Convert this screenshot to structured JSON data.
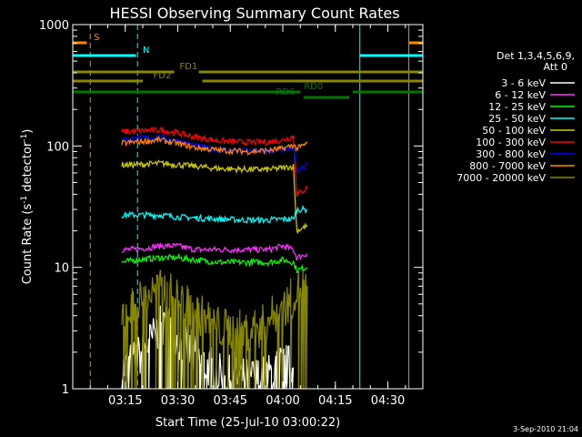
{
  "chart_data": {
    "type": "line",
    "title": "HESSI Observing Summary Count Rates",
    "xlabel": "Start Time (25-Jul-10 03:00:22)",
    "ylabel_parts": [
      "Count Rate (s",
      "-1",
      " detector",
      "-1",
      ")"
    ],
    "xlim_minutes": [
      0,
      100
    ],
    "ylim": [
      1,
      1000
    ],
    "yscale": "log",
    "x_ticks": [
      {
        "m": 15,
        "label": "03:15"
      },
      {
        "m": 30,
        "label": "03:30"
      },
      {
        "m": 45,
        "label": "03:45"
      },
      {
        "m": 60,
        "label": "04:00"
      },
      {
        "m": 75,
        "label": "04:15"
      },
      {
        "m": 90,
        "label": "04:30"
      }
    ],
    "y_tick_labels": [
      {
        "v": 1,
        "label": "1"
      },
      {
        "v": 10,
        "label": "10"
      },
      {
        "v": 100,
        "label": "100"
      },
      {
        "v": 1000,
        "label": "1000"
      }
    ],
    "legend_title": [
      "Det 1,3,4,5,6,9,",
      "Att 0"
    ],
    "legend_placement": "right",
    "series": [
      {
        "name": "3 - 6 keV",
        "color": "#ffffff",
        "values": [
          [
            14,
            1.4
          ],
          [
            20,
            2.0
          ],
          [
            25,
            3.2
          ],
          [
            30,
            2.6
          ],
          [
            35,
            1.8
          ],
          [
            42,
            1.3
          ],
          [
            50,
            1.2
          ],
          [
            56,
            1.3
          ],
          [
            60,
            1.6
          ],
          [
            63,
            1.5
          ]
        ]
      },
      {
        "name": "6 - 12 keV",
        "color": "#ff33ff",
        "values": [
          [
            14,
            14
          ],
          [
            18,
            14
          ],
          [
            25,
            15
          ],
          [
            30,
            15
          ],
          [
            35,
            14
          ],
          [
            42,
            14
          ],
          [
            50,
            14
          ],
          [
            56,
            14
          ],
          [
            60,
            15
          ],
          [
            63,
            14
          ],
          [
            64,
            12
          ],
          [
            67,
            13
          ]
        ]
      },
      {
        "name": "12 - 25 keV",
        "color": "#00ff00",
        "values": [
          [
            14,
            11
          ],
          [
            18,
            11.5
          ],
          [
            25,
            12
          ],
          [
            30,
            12
          ],
          [
            35,
            11.5
          ],
          [
            42,
            11
          ],
          [
            50,
            11
          ],
          [
            56,
            11
          ],
          [
            60,
            11.5
          ],
          [
            63,
            11
          ],
          [
            64,
            9.5
          ],
          [
            67,
            10
          ]
        ]
      },
      {
        "name": "25 - 50 keV",
        "color": "#00ffff",
        "values": [
          [
            14,
            27
          ],
          [
            18,
            27
          ],
          [
            25,
            27
          ],
          [
            30,
            26
          ],
          [
            35,
            25.5
          ],
          [
            42,
            25
          ],
          [
            50,
            24.5
          ],
          [
            56,
            24.5
          ],
          [
            60,
            25
          ],
          [
            63,
            25
          ],
          [
            64,
            30
          ],
          [
            67,
            30
          ]
        ]
      },
      {
        "name": "50 - 100 keV",
        "color": "#cccc00",
        "values": [
          [
            14,
            70
          ],
          [
            18,
            70
          ],
          [
            25,
            72
          ],
          [
            30,
            70
          ],
          [
            35,
            68
          ],
          [
            42,
            65
          ],
          [
            50,
            64
          ],
          [
            56,
            64
          ],
          [
            60,
            66
          ],
          [
            63,
            68
          ],
          [
            64,
            20
          ],
          [
            67,
            22
          ]
        ]
      },
      {
        "name": "100 - 300 keV",
        "color": "#ff0000",
        "values": [
          [
            14,
            130
          ],
          [
            18,
            133
          ],
          [
            25,
            135
          ],
          [
            30,
            128
          ],
          [
            35,
            118
          ],
          [
            42,
            110
          ],
          [
            50,
            107
          ],
          [
            56,
            108
          ],
          [
            60,
            112
          ],
          [
            63,
            120
          ],
          [
            64,
            40
          ],
          [
            67,
            45
          ]
        ]
      },
      {
        "name": "300 - 800 keV",
        "color": "#0000ff",
        "values": [
          [
            14,
            112
          ],
          [
            18,
            115
          ],
          [
            25,
            118
          ],
          [
            30,
            110
          ],
          [
            35,
            100
          ],
          [
            42,
            93
          ],
          [
            50,
            90
          ],
          [
            56,
            90
          ],
          [
            60,
            93
          ],
          [
            63,
            100
          ],
          [
            64,
            60
          ],
          [
            67,
            70
          ]
        ]
      },
      {
        "name": "800 - 7000 keV",
        "color": "#ff8800",
        "values": [
          [
            14,
            105
          ],
          [
            18,
            108
          ],
          [
            25,
            112
          ],
          [
            30,
            105
          ],
          [
            35,
            97
          ],
          [
            42,
            92
          ],
          [
            50,
            90
          ],
          [
            56,
            92
          ],
          [
            60,
            95
          ],
          [
            63,
            102
          ],
          [
            64,
            95
          ],
          [
            67,
            105
          ]
        ]
      },
      {
        "name": "7000 - 20000 keV",
        "color": "#888800",
        "values": [
          [
            14,
            4.0
          ],
          [
            18,
            5.0
          ],
          [
            22,
            6.0
          ],
          [
            26,
            6.5
          ],
          [
            30,
            5.5
          ],
          [
            34,
            4.5
          ],
          [
            38,
            3.8
          ],
          [
            42,
            3.2
          ],
          [
            46,
            3.0
          ],
          [
            50,
            3.0
          ],
          [
            54,
            3.3
          ],
          [
            58,
            4.2
          ],
          [
            62,
            5.2
          ],
          [
            63,
            6.0
          ],
          [
            64,
            6.5
          ],
          [
            67,
            7.0
          ]
        ]
      }
    ],
    "flag_bars": [
      {
        "label": "S",
        "color": "#ff8800",
        "y_frac": 0.05,
        "segments": [
          [
            0,
            4
          ]
        ],
        "right_segments": [
          [
            96,
            100
          ]
        ],
        "label_at": 6
      },
      {
        "label": "N",
        "color": "#00ffff",
        "y_frac": 0.085,
        "segments": [
          [
            0,
            18
          ]
        ],
        "right_segments": [
          [
            82,
            100
          ]
        ],
        "label_at": 20
      },
      {
        "label": "FD1",
        "color": "#888800",
        "y_frac": 0.13,
        "segments": [
          [
            0,
            29
          ]
        ],
        "right_segments": [
          [
            36,
            100
          ]
        ],
        "label_at": 30.5
      },
      {
        "label": "FD2",
        "color": "#888800",
        "y_frac": 0.155,
        "segments": [
          [
            0,
            20
          ]
        ],
        "right_segments": [
          [
            37,
            100
          ]
        ],
        "label_at": 23
      },
      {
        "label": "RD0",
        "color": "#007700",
        "y_frac": 0.185,
        "segments": [
          [
            0,
            65
          ]
        ],
        "right_segments": [
          [
            80,
            100
          ]
        ],
        "label_at": 66
      },
      {
        "label": "RD6",
        "color": "#007700",
        "y_frac": 0.2,
        "segments": [],
        "right_segments": [
          [
            66,
            79
          ]
        ],
        "label_at": 58
      }
    ],
    "vlines": [
      {
        "m": 5,
        "color": "#ff8800",
        "dashed": true
      },
      {
        "m": 18.5,
        "color": "#00ffff",
        "dashed": true
      },
      {
        "m": 82,
        "color": "#00ffff",
        "dashed": false
      },
      {
        "m": 96,
        "color": "#ff8800",
        "dashed": false
      },
      {
        "m": 100,
        "color": "#00ffff",
        "dashed": true
      }
    ],
    "footer_date": "3-Sep-2010 21:04"
  }
}
